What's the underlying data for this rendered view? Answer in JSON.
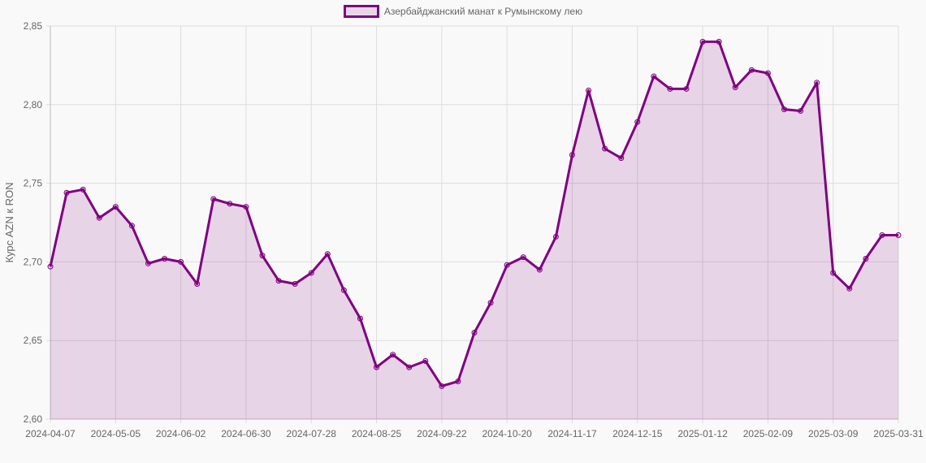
{
  "chart_data": {
    "type": "line",
    "title": "",
    "legend": {
      "position": "top",
      "entries": [
        "Азербайджанский манат к Румынскому лею"
      ]
    },
    "xlabel": "",
    "ylabel": "Курс AZN к RON",
    "ylim": [
      2.6,
      2.85
    ],
    "yticks": [
      "2,60",
      "2,65",
      "2,70",
      "2,75",
      "2,80",
      "2,85"
    ],
    "ytick_values": [
      2.6,
      2.65,
      2.7,
      2.75,
      2.8,
      2.85
    ],
    "xtick_labels": [
      "2024-04-07",
      "2024-05-05",
      "2024-06-02",
      "2024-06-30",
      "2024-07-28",
      "2024-08-25",
      "2024-09-22",
      "2024-10-20",
      "2024-11-17",
      "2024-12-15",
      "2025-01-12",
      "2025-02-09",
      "2025-03-09",
      "2025-03-31"
    ],
    "xtick_indices": [
      0,
      4,
      8,
      12,
      16,
      20,
      24,
      28,
      32,
      36,
      40,
      44,
      48,
      52
    ],
    "grid": true,
    "fill": true,
    "colors": {
      "line": "#800080",
      "fill": "rgba(128,0,128,0.15)",
      "grid": "#dddddd",
      "background": "#f9f9f9"
    },
    "series": [
      {
        "name": "Азербайджанский манат к Румынскому лею",
        "values": [
          2.697,
          2.744,
          2.746,
          2.728,
          2.735,
          2.723,
          2.699,
          2.702,
          2.7,
          2.686,
          2.74,
          2.737,
          2.735,
          2.704,
          2.688,
          2.686,
          2.693,
          2.705,
          2.682,
          2.664,
          2.633,
          2.641,
          2.633,
          2.637,
          2.621,
          2.624,
          2.655,
          2.674,
          2.698,
          2.703,
          2.695,
          2.716,
          2.768,
          2.809,
          2.772,
          2.766,
          2.789,
          2.818,
          2.81,
          2.81,
          2.84,
          2.84,
          2.811,
          2.822,
          2.82,
          2.797,
          2.796,
          2.814,
          2.693,
          2.683,
          2.702,
          2.717,
          2.717
        ]
      }
    ]
  }
}
